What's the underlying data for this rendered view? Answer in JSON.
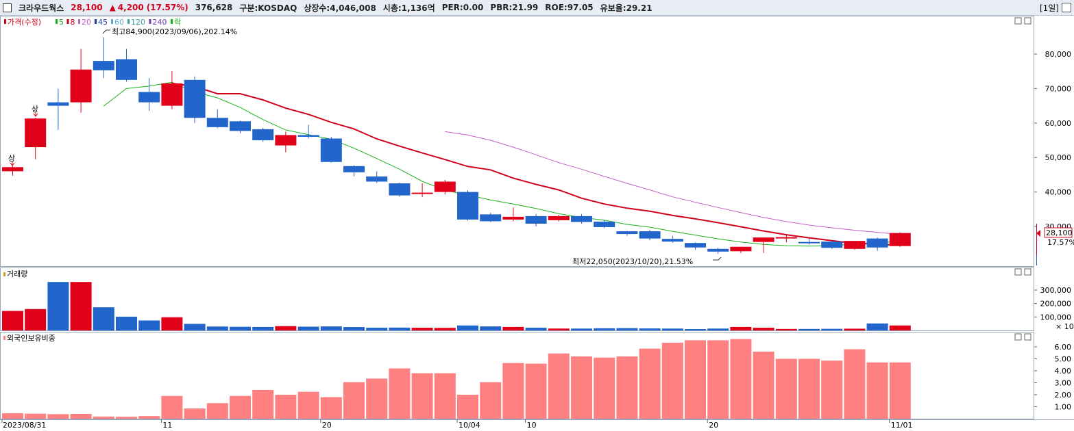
{
  "header": {
    "stock_name": "크라우드웍스",
    "price": "28,100",
    "change_arrow": "▲",
    "change": "4,200",
    "change_pct": "(17.57%)",
    "volume": "376,628",
    "market": "구분:KOSDAQ",
    "shares": "상장수:4,046,008",
    "market_cap": "시총:1,136억",
    "per": "PER:0.00",
    "pbr": "PBR:21.99",
    "roe": "ROE:97.05",
    "float": "유보율:29.21",
    "period": "[1일]"
  },
  "price_panel": {
    "legend": [
      {
        "label": "가격(수정)",
        "color": "#d0021b"
      },
      {
        "label": "5",
        "color": "#17b217"
      },
      {
        "label": "8",
        "color": "#d0021b"
      },
      {
        "label": "20",
        "color": "#c060c0"
      },
      {
        "label": "45",
        "color": "#1b3fa8"
      },
      {
        "label": "60",
        "color": "#5fa8d8"
      },
      {
        "label": "120",
        "color": "#3a9f9f"
      },
      {
        "label": "240",
        "color": "#6a3fa8"
      },
      {
        "label": "락",
        "color": "#17b217"
      }
    ],
    "max_annotation": "최고84,900(2023/09/06),202.14%",
    "min_annotation": "최저22,050(2023/10/20),21.53%",
    "limit_up_label": "상",
    "last_price_label": "28,100",
    "last_pct_label": "17.57%",
    "y_ticks": [
      "80,000",
      "70,000",
      "60,000",
      "50,000",
      "40,000",
      "30,000"
    ]
  },
  "volume_panel": {
    "title": "거래량",
    "y_ticks": [
      "300,000",
      "200,000",
      "100,000"
    ],
    "unit": "× 10"
  },
  "foreign_panel": {
    "title": "외국인보유비중",
    "y_ticks": [
      "6.00",
      "5.00",
      "4.00",
      "3.00",
      "2.00",
      "1.00"
    ]
  },
  "x_axis": {
    "labels": [
      "2023/08/31",
      "11",
      "20",
      "10/04",
      "10",
      "20",
      "11/01"
    ]
  },
  "colors": {
    "up": "#e0001a",
    "down": "#2266cc",
    "foreign": "#ff8080"
  },
  "chart_data": {
    "type": "candlestick",
    "candles": [
      {
        "date": "2023/08/31",
        "o": 46000,
        "h": 47500,
        "l": 44700,
        "c": 47200
      },
      {
        "date": "2023/09/01",
        "o": 53000,
        "h": 61500,
        "l": 49500,
        "c": 61300
      },
      {
        "date": "2023/09/04",
        "o": 66000,
        "h": 70000,
        "l": 58000,
        "c": 65000
      },
      {
        "date": "2023/09/05",
        "o": 66000,
        "h": 81500,
        "l": 63000,
        "c": 75500
      },
      {
        "date": "2023/09/06",
        "o": 78000,
        "h": 84900,
        "l": 73000,
        "c": 75300
      },
      {
        "date": "2023/09/07",
        "o": 78500,
        "h": 81500,
        "l": 72000,
        "c": 72500
      },
      {
        "date": "2023/09/08",
        "o": 69000,
        "h": 73000,
        "l": 63500,
        "c": 66000
      },
      {
        "date": "2023/09/11",
        "o": 65000,
        "h": 75000,
        "l": 64000,
        "c": 71500
      },
      {
        "date": "2023/09/12",
        "o": 72500,
        "h": 73500,
        "l": 60000,
        "c": 61500
      },
      {
        "date": "2023/09/13",
        "o": 61500,
        "h": 64000,
        "l": 58500,
        "c": 58800
      },
      {
        "date": "2023/09/14",
        "o": 60500,
        "h": 60700,
        "l": 57000,
        "c": 57700
      },
      {
        "date": "2023/09/15",
        "o": 58200,
        "h": 58600,
        "l": 54500,
        "c": 55000
      },
      {
        "date": "2023/09/18",
        "o": 53500,
        "h": 57500,
        "l": 51500,
        "c": 56500
      },
      {
        "date": "2023/09/19",
        "o": 56500,
        "h": 59500,
        "l": 55500,
        "c": 56000
      },
      {
        "date": "2023/09/20",
        "o": 55500,
        "h": 56000,
        "l": 48500,
        "c": 48700
      },
      {
        "date": "2023/09/21",
        "o": 47500,
        "h": 47700,
        "l": 44500,
        "c": 45700
      },
      {
        "date": "2023/09/22",
        "o": 44500,
        "h": 46000,
        "l": 42600,
        "c": 43000
      },
      {
        "date": "2023/09/25",
        "o": 42500,
        "h": 42700,
        "l": 38600,
        "c": 39000
      },
      {
        "date": "2023/09/26",
        "o": 39500,
        "h": 42500,
        "l": 38500,
        "c": 39800
      },
      {
        "date": "2023/09/27",
        "o": 40000,
        "h": 43500,
        "l": 39300,
        "c": 43000
      },
      {
        "date": "2023/10/04",
        "o": 40000,
        "h": 40500,
        "l": 31700,
        "c": 32000
      },
      {
        "date": "2023/10/05",
        "o": 33500,
        "h": 34000,
        "l": 31300,
        "c": 31500
      },
      {
        "date": "2023/10/06",
        "o": 32000,
        "h": 35500,
        "l": 31500,
        "c": 32800
      },
      {
        "date": "2023/10/10",
        "o": 33000,
        "h": 33600,
        "l": 30000,
        "c": 30800
      },
      {
        "date": "2023/10/11",
        "o": 31800,
        "h": 33400,
        "l": 31500,
        "c": 33000
      },
      {
        "date": "2023/10/12",
        "o": 33000,
        "h": 33600,
        "l": 30800,
        "c": 31300
      },
      {
        "date": "2023/10/13",
        "o": 31400,
        "h": 31700,
        "l": 29500,
        "c": 29800
      },
      {
        "date": "2023/10/16",
        "o": 28600,
        "h": 28700,
        "l": 27300,
        "c": 27800
      },
      {
        "date": "2023/10/17",
        "o": 28600,
        "h": 29000,
        "l": 26000,
        "c": 26500
      },
      {
        "date": "2023/10/18",
        "o": 26400,
        "h": 27300,
        "l": 25300,
        "c": 25600
      },
      {
        "date": "2023/10/19",
        "o": 25200,
        "h": 25400,
        "l": 23300,
        "c": 23900
      },
      {
        "date": "2023/10/20",
        "o": 23500,
        "h": 23800,
        "l": 22050,
        "c": 22700
      },
      {
        "date": "2023/10/23",
        "o": 22800,
        "h": 24000,
        "l": 22300,
        "c": 24100
      },
      {
        "date": "2023/10/24",
        "o": 25500,
        "h": 26300,
        "l": 22300,
        "c": 26800
      },
      {
        "date": "2023/10/25",
        "o": 26800,
        "h": 27500,
        "l": 25400,
        "c": 26900
      },
      {
        "date": "2023/10/26",
        "o": 25500,
        "h": 26500,
        "l": 24800,
        "c": 25300
      },
      {
        "date": "2023/10/27",
        "o": 25600,
        "h": 25900,
        "l": 23500,
        "c": 23800
      },
      {
        "date": "2023/10/30",
        "o": 23500,
        "h": 25800,
        "l": 23200,
        "c": 25800
      },
      {
        "date": "2023/10/31",
        "o": 26500,
        "h": 26800,
        "l": 22900,
        "c": 23900
      },
      {
        "date": "2023/11/01",
        "o": 24300,
        "h": 28300,
        "l": 24100,
        "c": 28100
      }
    ],
    "ma5": [
      null,
      null,
      null,
      null,
      64900,
      70000,
      70700,
      71800,
      69000,
      67300,
      64500,
      61000,
      58000,
      56600,
      55300,
      52700,
      49700,
      46600,
      43100,
      40500,
      39100,
      37700,
      36500,
      35200,
      33700,
      32600,
      31800,
      30600,
      29800,
      28600,
      27500,
      26400,
      25500,
      24800,
      24400,
      24300,
      24400,
      24900,
      25300,
      25700
    ],
    "ma8": [
      null,
      null,
      null,
      null,
      null,
      null,
      null,
      71500,
      70600,
      68500,
      68500,
      66700,
      64300,
      62500,
      60200,
      58300,
      55400,
      53300,
      51300,
      49400,
      47400,
      46400,
      44000,
      42200,
      40600,
      38200,
      36500,
      35300,
      34400,
      33200,
      32200,
      31100,
      29900,
      28700,
      27600,
      26700,
      25900,
      25100,
      24900,
      24500
    ],
    "ma20": [
      null,
      null,
      null,
      null,
      null,
      null,
      null,
      null,
      null,
      null,
      null,
      null,
      null,
      null,
      null,
      null,
      null,
      null,
      null,
      57500,
      56500,
      55000,
      53000,
      50800,
      48500,
      46600,
      44500,
      42500,
      40600,
      38600,
      37000,
      35500,
      34000,
      32600,
      31400,
      30400,
      29600,
      28900,
      28300,
      27700
    ],
    "volume": [
      14500,
      15900,
      36000,
      36000,
      17200,
      10200,
      7400,
      9800,
      4900,
      2900,
      2700,
      2600,
      3200,
      2800,
      3000,
      2500,
      2000,
      2100,
      2000,
      1900,
      3700,
      3000,
      2600,
      2000,
      1400,
      1400,
      1600,
      1700,
      1500,
      1400,
      1000,
      1400,
      2600,
      2000,
      1100,
      1100,
      1200,
      1300,
      5200,
      3700
    ],
    "foreign_ratio": [
      0.45,
      0.42,
      0.38,
      0.4,
      0.18,
      0.16,
      0.22,
      1.9,
      0.85,
      1.3,
      1.9,
      2.4,
      2.0,
      2.25,
      1.8,
      3.05,
      3.35,
      4.2,
      3.8,
      3.8,
      2.0,
      3.05,
      4.65,
      4.6,
      5.45,
      5.2,
      5.1,
      5.2,
      5.85,
      6.35,
      6.55,
      6.55,
      6.65,
      5.6,
      5.0,
      5.0,
      4.85,
      5.8,
      4.7,
      4.7
    ]
  }
}
